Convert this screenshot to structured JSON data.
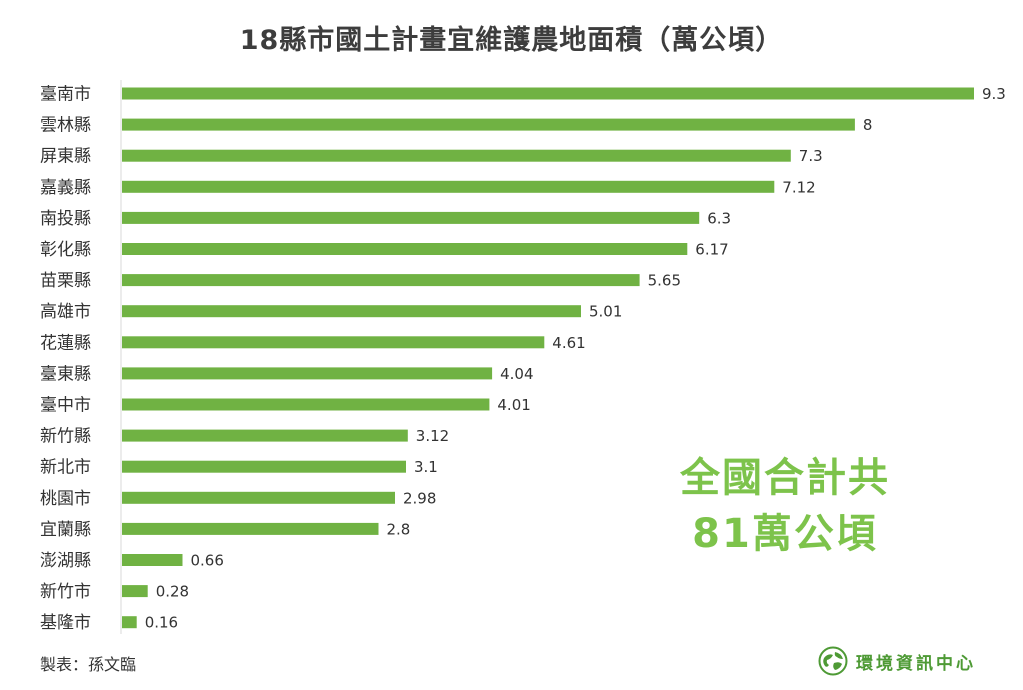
{
  "chart_data": {
    "type": "bar",
    "orientation": "horizontal",
    "title": "18縣市國土計畫宜維護農地面積（萬公頃）",
    "categories": [
      "臺南市",
      "雲林縣",
      "屏東縣",
      "嘉義縣",
      "南投縣",
      "彰化縣",
      "苗栗縣",
      "高雄市",
      "花蓮縣",
      "臺東縣",
      "臺中市",
      "新竹縣",
      "新北市",
      "桃園市",
      "宜蘭縣",
      "澎湖縣",
      "新竹市",
      "基隆市"
    ],
    "values": [
      9.3,
      8,
      7.3,
      7.12,
      6.3,
      6.17,
      5.65,
      5.01,
      4.61,
      4.04,
      4.01,
      3.12,
      3.1,
      2.98,
      2.8,
      0.66,
      0.28,
      0.16
    ],
    "value_labels": [
      "9.3",
      "8",
      "7.3",
      "7.12",
      "6.3",
      "6.17",
      "5.65",
      "5.01",
      "4.61",
      "4.04",
      "4.01",
      "3.12",
      "3.1",
      "2.98",
      "2.8",
      "0.66",
      "0.28",
      "0.16"
    ],
    "xlim": [
      0,
      9.3
    ],
    "grid": false,
    "bar_color": "#70b243"
  },
  "callout": {
    "line1": "全國合計共",
    "line2": "81萬公頃",
    "color": "#7dc34b"
  },
  "credit": "製表：孫文臨",
  "brand": {
    "name": "環境資訊中心",
    "logo_icon": "earth-leaf-icon",
    "color": "#4e9a35"
  }
}
